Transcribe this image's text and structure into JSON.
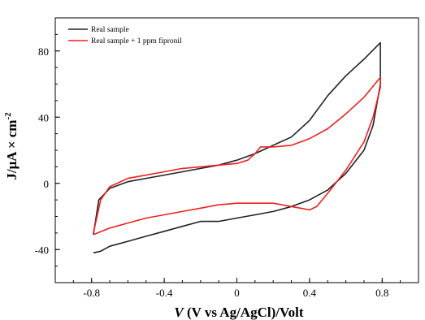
{
  "chart_data": {
    "type": "line",
    "xlabel": {
      "var": "V",
      "rest": " (V vs Ag/AgCl)/Volt"
    },
    "ylabel": {
      "main": "J/μA × cm",
      "sup": "-2"
    },
    "xlim": [
      -1.0,
      1.0
    ],
    "ylim": [
      -60,
      100
    ],
    "x_ticks": [
      -0.8,
      -0.4,
      0,
      0.4,
      0.8
    ],
    "x_tick_labels": [
      "-0.8",
      "-0.4",
      "0",
      "0.4",
      "0.8"
    ],
    "y_ticks": [
      -40,
      0,
      40,
      80
    ],
    "y_tick_labels": [
      "-40",
      "0",
      "40",
      "80"
    ],
    "grid": false,
    "legend_position": "top-left",
    "series": [
      {
        "name": "Real sample",
        "color": "#222222",
        "x": [
          -0.79,
          -0.76,
          -0.7,
          -0.6,
          -0.5,
          -0.4,
          -0.3,
          -0.2,
          -0.1,
          0.0,
          0.1,
          0.2,
          0.3,
          0.4,
          0.5,
          0.6,
          0.7,
          0.79,
          0.79,
          0.75,
          0.7,
          0.6,
          0.5,
          0.4,
          0.3,
          0.2,
          0.1,
          0.0,
          -0.1,
          -0.2,
          -0.3,
          -0.4,
          -0.5,
          -0.6,
          -0.7,
          -0.75,
          -0.79
        ],
        "y": [
          -31,
          -10,
          -3,
          1,
          3,
          5,
          7,
          9,
          11,
          14,
          18,
          23,
          28,
          38,
          53,
          65,
          75,
          85,
          60,
          35,
          20,
          6,
          -4,
          -10,
          -14,
          -17,
          -19,
          -21,
          -23,
          -23,
          -26,
          -29,
          -32,
          -35,
          -38,
          -41,
          -42
        ]
      },
      {
        "name": "Real sample + 1 ppm fipronil",
        "color": "#ee2020",
        "x": [
          -0.79,
          -0.75,
          -0.7,
          -0.6,
          -0.5,
          -0.4,
          -0.3,
          -0.2,
          -0.1,
          0.0,
          0.06,
          0.1,
          0.13,
          0.2,
          0.3,
          0.4,
          0.5,
          0.6,
          0.7,
          0.79,
          0.79,
          0.75,
          0.7,
          0.6,
          0.5,
          0.44,
          0.4,
          0.35,
          0.3,
          0.2,
          0.1,
          0.0,
          -0.1,
          -0.2,
          -0.3,
          -0.4,
          -0.5,
          -0.6,
          -0.7,
          -0.79
        ],
        "y": [
          -30,
          -10,
          -2,
          3,
          5,
          7,
          9,
          10,
          11,
          12,
          14,
          18,
          22,
          22,
          23,
          27,
          33,
          42,
          52,
          64,
          58,
          40,
          25,
          8,
          -6,
          -14,
          -16,
          -15,
          -14,
          -12,
          -12,
          -12,
          -13,
          -15,
          -17,
          -19,
          -21,
          -24,
          -27,
          -31
        ]
      }
    ]
  }
}
